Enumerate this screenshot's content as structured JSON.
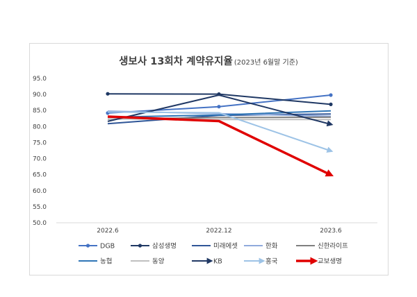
{
  "chart_data": {
    "type": "line",
    "title": "생보사 13회차 계약유지율",
    "subtitle": "(2023년 6월말 기준)",
    "categories": [
      "2022.6",
      "2022.12",
      "2023.6"
    ],
    "ylim": [
      50,
      95
    ],
    "yticks": [
      "50.0",
      "55.0",
      "60.0",
      "65.0",
      "70.0",
      "75.0",
      "80.0",
      "85.0",
      "90.0",
      "95.0"
    ],
    "grid": false,
    "legend_position": "bottom",
    "series": [
      {
        "name": "DGB",
        "values": [
          84.2,
          86.2,
          89.8
        ],
        "color": "#4472C4",
        "marker": "dot",
        "width": 2
      },
      {
        "name": "삼성생명",
        "values": [
          90.2,
          90.1,
          86.9
        ],
        "color": "#1F3864",
        "marker": "dot",
        "width": 2
      },
      {
        "name": "미래에셋",
        "values": [
          80.9,
          83.5,
          83.9
        ],
        "color": "#2F5597",
        "marker": "none",
        "width": 2
      },
      {
        "name": "한화",
        "values": [
          84.8,
          84.0,
          83.2
        ],
        "color": "#8FAADC",
        "marker": "none",
        "width": 2
      },
      {
        "name": "신한라이프",
        "values": [
          82.3,
          82.8,
          82.9
        ],
        "color": "#7F7F7F",
        "marker": "none",
        "width": 2
      },
      {
        "name": "농협",
        "values": [
          82.9,
          83.6,
          84.9
        ],
        "color": "#2E75B6",
        "marker": "none",
        "width": 2
      },
      {
        "name": "동양",
        "values": [
          82.4,
          82.2,
          82.2
        ],
        "color": "#BFBFBF",
        "marker": "none",
        "width": 2
      },
      {
        "name": "KB",
        "values": [
          81.6,
          89.8,
          80.7
        ],
        "color": "#203864",
        "marker": "arrow",
        "width": 2
      },
      {
        "name": "흥국",
        "values": [
          84.5,
          84.3,
          72.4
        ],
        "color": "#9DC3E6",
        "marker": "arrow",
        "width": 2
      },
      {
        "name": "교보생명",
        "values": [
          83.1,
          81.7,
          64.9
        ],
        "color": "#E00000",
        "marker": "arrow",
        "width": 3.5
      }
    ]
  }
}
